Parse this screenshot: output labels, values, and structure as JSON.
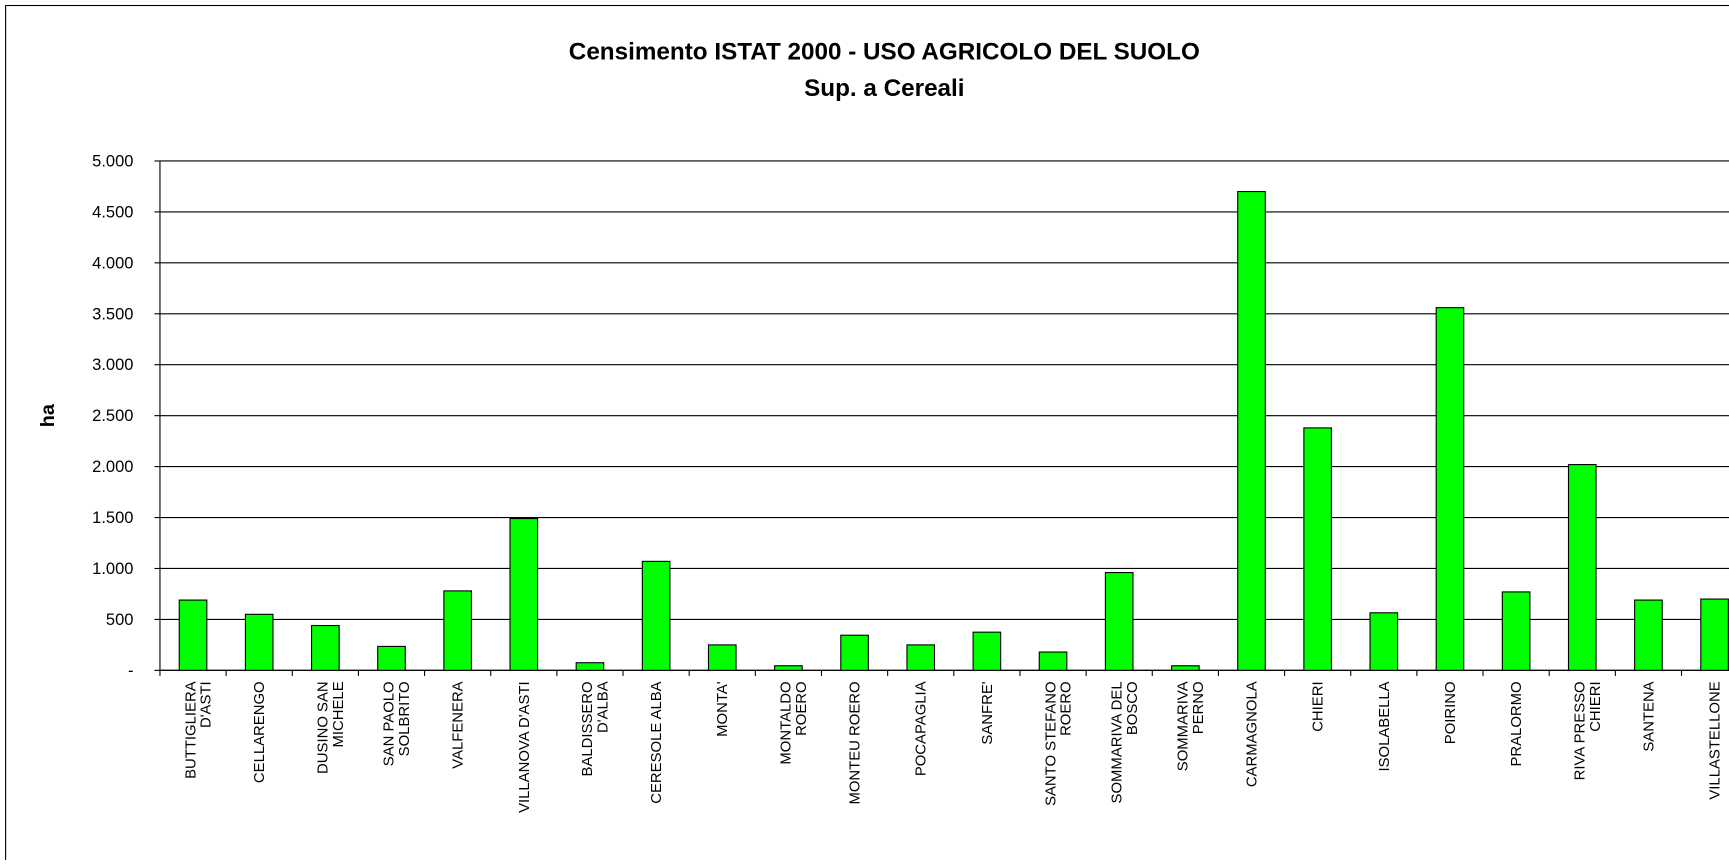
{
  "chart_data": {
    "type": "bar",
    "title": "Censimento ISTAT 2000 - USO AGRICOLO DEL SUOLO",
    "subtitle": "Sup. a Cereali",
    "y_label": "ha",
    "categories": [
      "BUTTIGLIERA\nD'ASTI",
      "CELLARENGO",
      "DUSINO SAN\nMICHELE",
      "SAN PAOLO\nSOLBRITO",
      "VALFENERA",
      "VILLANOVA D'ASTI",
      "BALDISSERO\nD'ALBA",
      "CERESOLE ALBA",
      "MONTA'",
      "MONTALDO\nROERO",
      "MONTEU ROERO",
      "POCAPAGLIA",
      "SANFRE'",
      "SANTO STEFANO\nROERO",
      "SOMMARIVA DEL\nBOSCO",
      "SOMMARIVA\nPERNO",
      "CARMAGNOLA",
      "CHIERI",
      "ISOLABELLA",
      "POIRINO",
      "PRALORMO",
      "RIVA PRESSO\nCHIERI",
      "SANTENA",
      "VILLASTELLONE"
    ],
    "values": [
      690,
      550,
      440,
      235,
      780,
      1490,
      75,
      1070,
      250,
      45,
      345,
      250,
      375,
      180,
      960,
      45,
      4700,
      2380,
      565,
      3560,
      770,
      2020,
      690,
      700
    ],
    "color": "#00ff00",
    "ylim": [
      0,
      5000
    ],
    "yticks": [
      {
        "value": 0,
        "label": "-"
      },
      500,
      {
        "value": 1000,
        "label": "1.000"
      },
      {
        "value": 1500,
        "label": "1.500"
      },
      {
        "value": 2000,
        "label": "2.000"
      },
      {
        "value": 2500,
        "label": "2.500"
      },
      {
        "value": 3000,
        "label": "3.000"
      },
      {
        "value": 3500,
        "label": "3.500"
      },
      {
        "value": 4000,
        "label": "4.000"
      },
      {
        "value": 4500,
        "label": "4.500"
      },
      {
        "value": 5000,
        "label": "5.000"
      }
    ],
    "grid": true
  }
}
